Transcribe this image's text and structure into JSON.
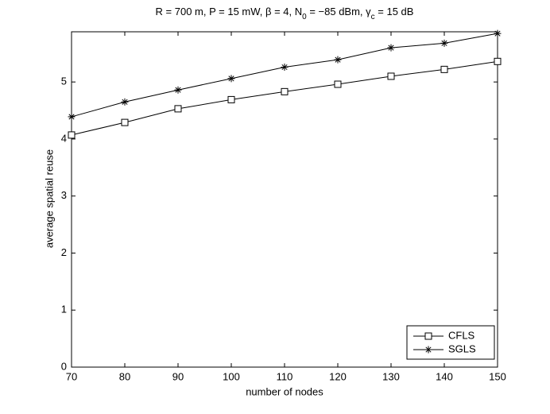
{
  "chart_data": {
    "type": "line",
    "title_parts": [
      "R = 700 m, P = 15 mW, β = 4, N",
      "0",
      " = −85 dBm, γ",
      "c",
      " = 15 dB"
    ],
    "x_label": "number of nodes",
    "y_label": "average spatial reuse",
    "x": [
      70,
      80,
      90,
      100,
      110,
      120,
      130,
      140,
      150
    ],
    "series": [
      {
        "name": "CFLS",
        "color": "#000000",
        "marker": "square",
        "values": [
          4.07,
          4.29,
          4.53,
          4.69,
          4.83,
          4.96,
          5.1,
          5.22,
          5.36
        ]
      },
      {
        "name": "SGLS",
        "color": "#000000",
        "marker": "asterisk",
        "values": [
          4.39,
          4.65,
          4.86,
          5.06,
          5.26,
          5.39,
          5.6,
          5.68,
          5.85
        ]
      }
    ],
    "xlim": [
      70,
      150
    ],
    "xticks": [
      70,
      80,
      90,
      100,
      110,
      120,
      130,
      140,
      150
    ],
    "ylim": [
      0,
      5.88
    ],
    "yticks": [
      0,
      1,
      2,
      3,
      4,
      5
    ],
    "grid": false,
    "legend": "bottom-right"
  }
}
